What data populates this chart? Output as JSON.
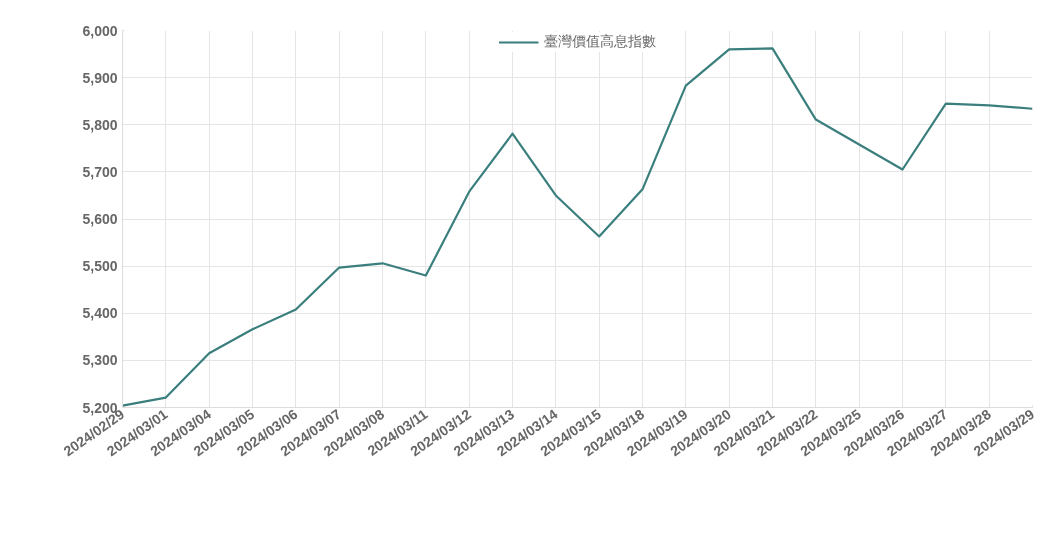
{
  "chart_data": {
    "type": "line",
    "categories": [
      "2024/02/29",
      "2024/03/01",
      "2024/03/04",
      "2024/03/05",
      "2024/03/06",
      "2024/03/07",
      "2024/03/08",
      "2024/03/11",
      "2024/03/12",
      "2024/03/13",
      "2024/03/14",
      "2024/03/15",
      "2024/03/18",
      "2024/03/19",
      "2024/03/20",
      "2024/03/21",
      "2024/03/22",
      "2024/03/25",
      "2024/03/26",
      "2024/03/27",
      "2024/03/28",
      "2024/03/29"
    ],
    "series": [
      {
        "name": "臺灣價值高息指數",
        "color": "#3a7f7d",
        "values": [
          5204,
          5221,
          5315,
          5366,
          5408,
          5497,
          5506,
          5480,
          5658,
          5781,
          5650,
          5563,
          5663,
          5883,
          5960,
          5962,
          5811,
          5758,
          5705,
          5845,
          5841,
          5834
        ]
      }
    ],
    "ylim": [
      5200,
      6000
    ],
    "yticks": [
      {
        "value": 5200,
        "label": "5,200"
      },
      {
        "value": 5300,
        "label": "5,300"
      },
      {
        "value": 5400,
        "label": "5,400"
      },
      {
        "value": 5500,
        "label": "5,500"
      },
      {
        "value": 5600,
        "label": "5,600"
      },
      {
        "value": 5700,
        "label": "5,700"
      },
      {
        "value": 5800,
        "label": "5,800"
      },
      {
        "value": 5900,
        "label": "5,900"
      },
      {
        "value": 6000,
        "label": "6,000"
      }
    ],
    "grid": true,
    "legend": "top",
    "marker": "none",
    "line_style": "solid"
  }
}
